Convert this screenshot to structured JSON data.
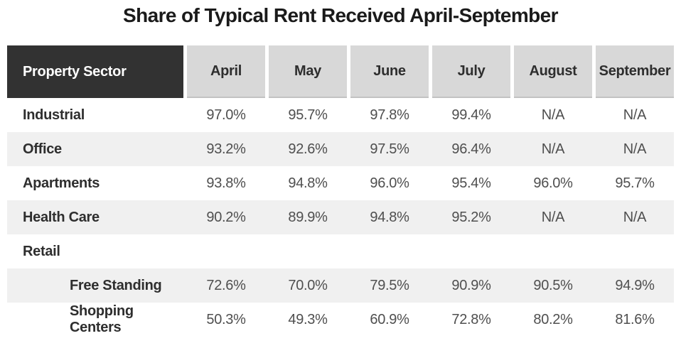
{
  "chart_data": {
    "type": "table",
    "title": "Share of Typical Rent Received April-September",
    "header": {
      "sector": "Property Sector",
      "months": [
        "April",
        "May",
        "June",
        "July",
        "August",
        "September"
      ]
    },
    "rows": [
      {
        "label": "Industrial",
        "values": [
          "97.0%",
          "95.7%",
          "97.8%",
          "99.4%",
          "N/A",
          "N/A"
        ]
      },
      {
        "label": "Office",
        "values": [
          "93.2%",
          "92.6%",
          "97.5%",
          "96.4%",
          "N/A",
          "N/A"
        ]
      },
      {
        "label": "Apartments",
        "values": [
          "93.8%",
          "94.8%",
          "96.0%",
          "95.4%",
          "96.0%",
          "95.7%"
        ]
      },
      {
        "label": "Health Care",
        "values": [
          "90.2%",
          "89.9%",
          "94.8%",
          "95.2%",
          "N/A",
          "N/A"
        ]
      },
      {
        "label": "Retail",
        "values": [
          "",
          "",
          "",
          "",
          "",
          ""
        ]
      },
      {
        "label": "Free Standing",
        "values": [
          "72.6%",
          "70.0%",
          "79.5%",
          "90.9%",
          "90.5%",
          "94.9%"
        ]
      },
      {
        "label": "Shopping Centers",
        "values": [
          "50.3%",
          "49.3%",
          "60.9%",
          "72.8%",
          "80.2%",
          "81.6%"
        ]
      }
    ],
    "layout": {
      "shaded_row_indexes": [
        1,
        3,
        5
      ],
      "indented_row_indexes": [
        5,
        6
      ],
      "section_row_indexes": [
        4
      ],
      "legend": "none",
      "grid": "row-striping"
    }
  },
  "colors": {
    "header_dark_bg": "#323232",
    "header_dark_text": "#ffffff",
    "header_month_bg": "#d8d8d8",
    "header_border": "#c2c2c2",
    "row_stripe_bg": "#f0f0f0",
    "label_text": "#2e2e2e",
    "value_text": "#4f4f4f",
    "title_text": "#1a1a1a",
    "background": "#ffffff"
  }
}
